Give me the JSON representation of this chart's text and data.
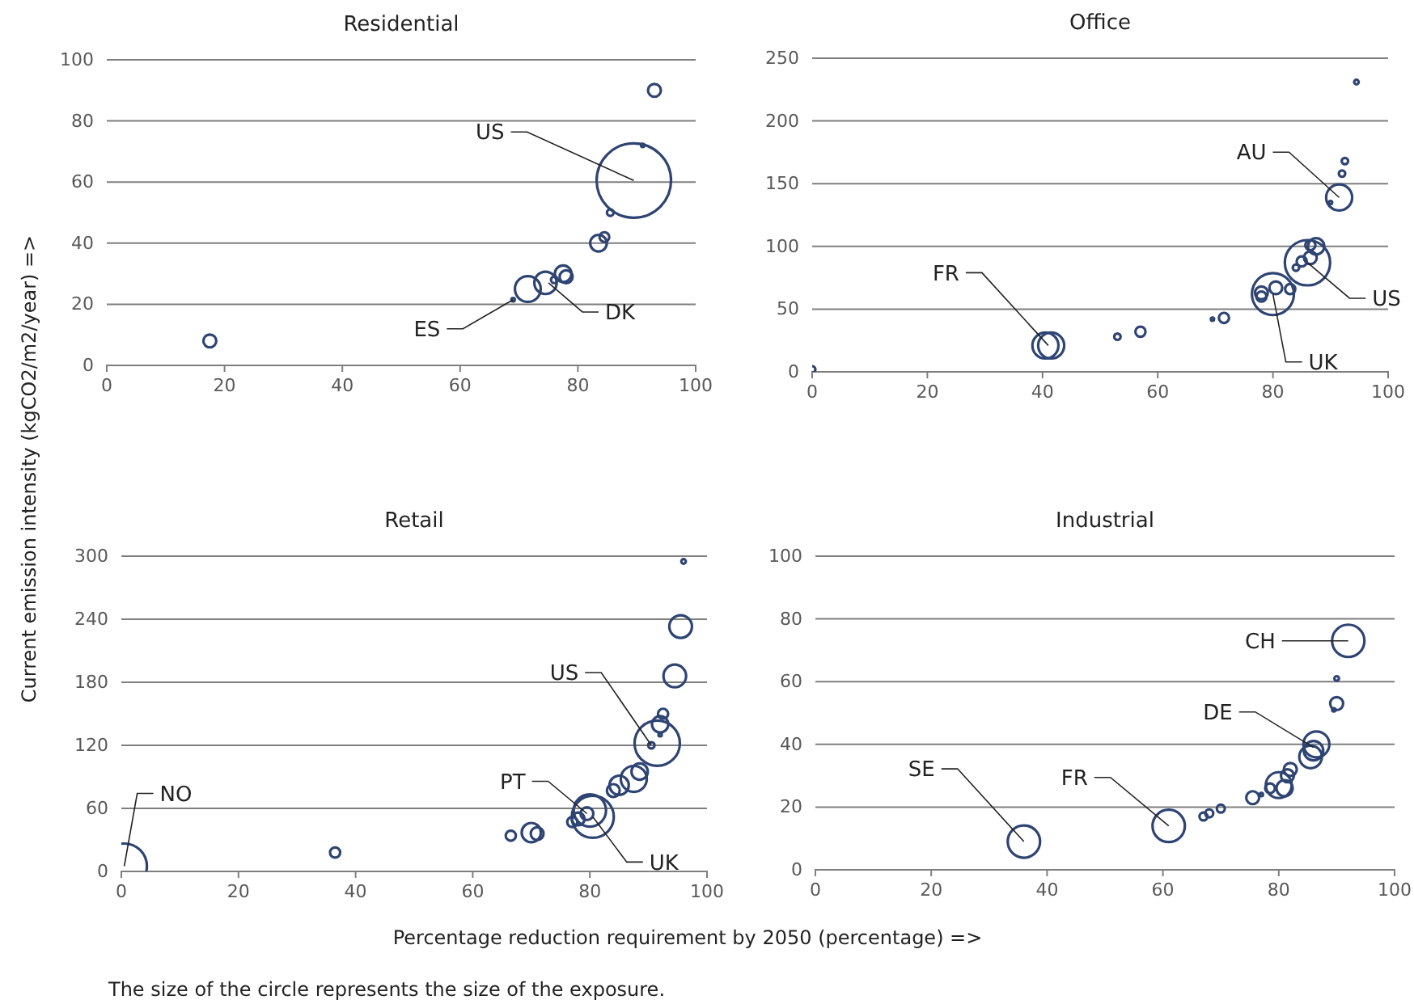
{
  "chart_data": [
    {
      "type": "bubble",
      "title": "Residential",
      "ylabel": "Current emission intensity (kgCO2/m2/year) =>",
      "xlim": [
        0,
        100
      ],
      "xticks": [
        0,
        20,
        40,
        60,
        80,
        100
      ],
      "ylim": [
        0,
        100
      ],
      "yticks": [
        0,
        20,
        40,
        60,
        80,
        100
      ],
      "grid": "y",
      "marker": "circle",
      "series": [
        {
          "color": "#2e4473",
          "x": [
            17.5,
            69,
            71.5,
            74.5,
            76,
            77.5,
            78,
            83.5,
            84.5,
            85.5,
            89.5,
            91,
            93
          ],
          "values": [
            8,
            21.5,
            25,
            27,
            28,
            30,
            29,
            40,
            42,
            50,
            60.5,
            72,
            90
          ],
          "sizes": [
            0.03,
            0.002,
            0.12,
            0.09,
            0.008,
            0.05,
            0.03,
            0.05,
            0.017,
            0.008,
            1,
            0.002,
            0.03
          ]
        }
      ],
      "annotations": [
        {
          "text": "US",
          "x": 89.5,
          "y": 60.5
        },
        {
          "text": "ES",
          "x": 69,
          "y": 21.5
        },
        {
          "text": "DK",
          "x": 75,
          "y": 27
        }
      ]
    },
    {
      "type": "bubble",
      "title": "Office",
      "xlim": [
        0,
        100
      ],
      "xticks": [
        0,
        20,
        40,
        60,
        80,
        100
      ],
      "ylim": [
        0,
        250
      ],
      "yticks": [
        0,
        50,
        100,
        150,
        200,
        250
      ],
      "grid": "y",
      "marker": "circle",
      "series": [
        {
          "color": "#2e4473",
          "x": [
            0,
            40.5,
            41.5,
            53,
            57,
            69.5,
            71.5,
            78,
            78,
            80,
            80.5,
            83,
            84,
            85,
            86,
            86.5,
            87.5,
            86.5,
            90,
            91.5,
            92,
            92.5,
            94.5
          ],
          "values": [
            2,
            21,
            21,
            28,
            32,
            42,
            43,
            63,
            60,
            62,
            67,
            66,
            83,
            88,
            87,
            91,
            100,
            101,
            135,
            139,
            158,
            168,
            231
          ],
          "sizes": [
            0.02,
            0.33,
            0.33,
            0.02,
            0.05,
            0.005,
            0.05,
            0.08,
            0.05,
            0.86,
            0.08,
            0.05,
            0.02,
            0.05,
            1,
            0.08,
            0.13,
            0.05,
            0.005,
            0.33,
            0.02,
            0.02,
            0.01
          ]
        }
      ],
      "annotations": [
        {
          "text": "AU",
          "x": 91.5,
          "y": 139
        },
        {
          "text": "FR",
          "x": 41,
          "y": 21
        },
        {
          "text": "US",
          "x": 86,
          "y": 87
        },
        {
          "text": "UK",
          "x": 80,
          "y": 62
        }
      ]
    },
    {
      "type": "bubble",
      "title": "Retail",
      "xlabel": "Percentage reduction requirement by 2050 (percentage) =>",
      "xlim": [
        0,
        100
      ],
      "xticks": [
        0,
        20,
        40,
        60,
        80,
        100
      ],
      "ylim": [
        0,
        300
      ],
      "yticks": [
        0,
        60,
        120,
        180,
        240,
        300
      ],
      "grid": "y",
      "marker": "circle",
      "series": [
        {
          "color": "#2e4473",
          "x": [
            0.5,
            36.5,
            66.5,
            70,
            71,
            77,
            78,
            79.5,
            80,
            80.5,
            84,
            85,
            87.5,
            88.5,
            90.5,
            91.5,
            92,
            92,
            92.5,
            94.5,
            95.5,
            96
          ],
          "values": [
            5,
            18,
            34,
            37,
            36,
            47,
            50,
            55,
            58,
            52,
            77,
            82,
            88,
            95,
            120,
            122,
            130,
            140,
            150,
            186,
            233,
            295
          ],
          "sizes": [
            1,
            0.05,
            0.05,
            0.18,
            0.08,
            0.05,
            0.08,
            0.08,
            0.51,
            0.86,
            0.08,
            0.18,
            0.33,
            0.13,
            0.02,
            1,
            0.005,
            0.13,
            0.05,
            0.25,
            0.25,
            0.01
          ]
        }
      ],
      "annotations": [
        {
          "text": "NO",
          "x": 0.5,
          "y": 5
        },
        {
          "text": "PT",
          "x": 79.5,
          "y": 55
        },
        {
          "text": "US",
          "x": 90.5,
          "y": 120
        },
        {
          "text": "UK",
          "x": 80.5,
          "y": 52
        },
        "The size of the circle represents the size of the exposure."
      ]
    },
    {
      "type": "bubble",
      "title": "Industrial",
      "xlim": [
        0,
        100
      ],
      "xticks": [
        0,
        20,
        40,
        60,
        80,
        100
      ],
      "ylim": [
        0,
        100
      ],
      "yticks": [
        0,
        20,
        40,
        60,
        80,
        100
      ],
      "grid": "y",
      "marker": "circle",
      "series": [
        {
          "color": "#2e4473",
          "x": [
            36,
            61,
            67,
            68,
            70,
            75.5,
            77,
            78.5,
            80,
            81,
            81.5,
            82,
            85.5,
            86,
            86.5,
            89.5,
            90,
            90,
            92
          ],
          "values": [
            9,
            14,
            17,
            18,
            19.5,
            23,
            24,
            26,
            27,
            26,
            30,
            32,
            36,
            38,
            40,
            51,
            53,
            61,
            73
          ],
          "sizes": [
            1,
            1,
            0.06,
            0.06,
            0.06,
            0.16,
            0.01,
            0.09,
            0.64,
            0.25,
            0.16,
            0.16,
            0.49,
            0.36,
            0.64,
            0.01,
            0.16,
            0.02,
            1
          ]
        }
      ],
      "annotations": [
        {
          "text": "CH",
          "x": 92,
          "y": 73
        },
        {
          "text": "DE",
          "x": 86,
          "y": 39
        },
        {
          "text": "FR",
          "x": 61,
          "y": 14
        },
        {
          "text": "SE",
          "x": 36,
          "y": 9
        }
      ]
    }
  ]
}
